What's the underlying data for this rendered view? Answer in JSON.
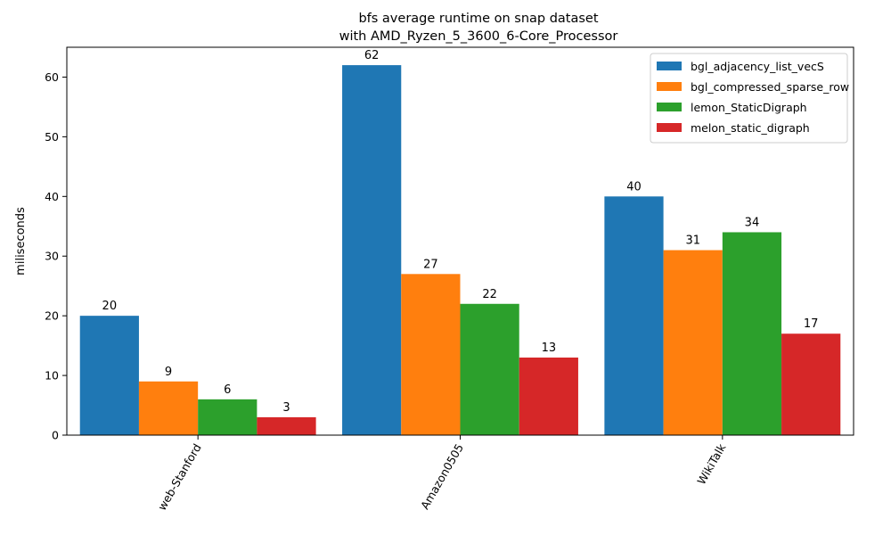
{
  "chart_data": {
    "type": "bar",
    "title_line1": "bfs average runtime on snap dataset",
    "title_line2": "with AMD_Ryzen_5_3600_6-Core_Processor",
    "xlabel": "",
    "ylabel": "miliseconds",
    "ylim": [
      0,
      65
    ],
    "yticks": [
      0,
      10,
      20,
      30,
      40,
      50,
      60
    ],
    "categories": [
      "web-Stanford",
      "Amazon0505",
      "WikiTalk"
    ],
    "series": [
      {
        "name": "bgl_adjacency_list_vecS",
        "color": "#1f77b4",
        "values": [
          20,
          62,
          40
        ]
      },
      {
        "name": "bgl_compressed_sparse_row",
        "color": "#ff7f0e",
        "values": [
          9,
          27,
          31
        ]
      },
      {
        "name": "lemon_StaticDigraph",
        "color": "#2ca02c",
        "values": [
          6,
          22,
          34
        ]
      },
      {
        "name": "melon_static_digraph",
        "color": "#d62728",
        "values": [
          3,
          13,
          17
        ]
      }
    ],
    "legend_position": "top-right",
    "grid": false
  }
}
